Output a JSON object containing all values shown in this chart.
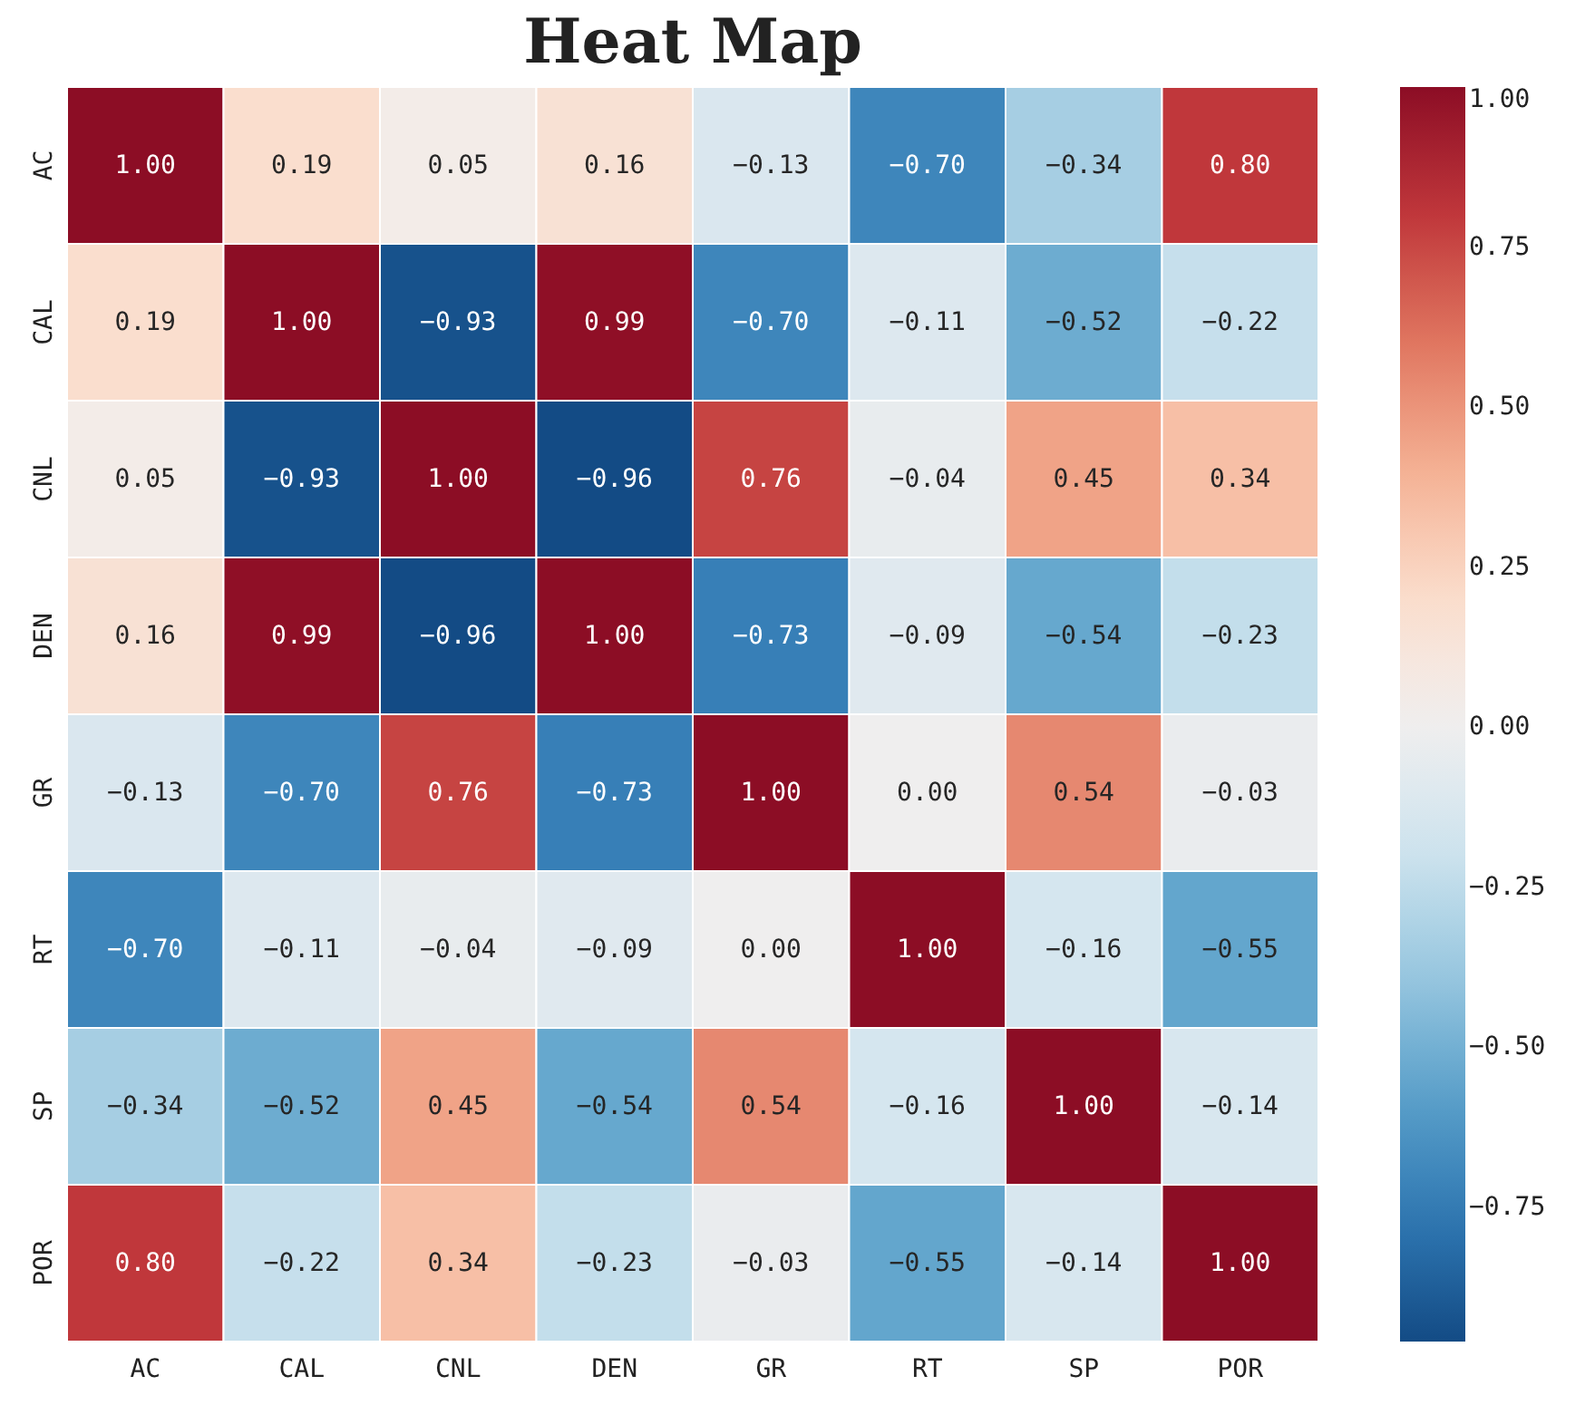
{
  "chart_data": {
    "type": "heatmap",
    "title": "Heat Map",
    "categories": [
      "AC",
      "CAL",
      "CNL",
      "DEN",
      "GR",
      "RT",
      "SP",
      "POR"
    ],
    "y_categories": [
      "AC",
      "CAL",
      "CNL",
      "DEN",
      "GR",
      "RT",
      "SP",
      "POR"
    ],
    "cells": [
      [
        1.0,
        0.19,
        0.05,
        0.16,
        -0.13,
        -0.7,
        -0.34,
        0.8
      ],
      [
        0.19,
        1.0,
        -0.93,
        0.99,
        -0.7,
        -0.11,
        -0.52,
        -0.22
      ],
      [
        0.05,
        -0.93,
        1.0,
        -0.96,
        0.76,
        -0.04,
        0.45,
        0.34
      ],
      [
        0.16,
        0.99,
        -0.96,
        1.0,
        -0.73,
        -0.09,
        -0.54,
        -0.23
      ],
      [
        -0.13,
        -0.7,
        0.76,
        -0.73,
        1.0,
        0.0,
        0.54,
        -0.03
      ],
      [
        -0.7,
        -0.11,
        -0.04,
        -0.09,
        0.0,
        1.0,
        -0.16,
        -0.55
      ],
      [
        -0.34,
        -0.52,
        0.45,
        -0.54,
        0.54,
        -0.16,
        1.0,
        -0.14
      ],
      [
        0.8,
        -0.22,
        0.34,
        -0.23,
        -0.03,
        -0.55,
        -0.14,
        1.0
      ]
    ],
    "cell_labels": [
      [
        "1.00",
        "0.19",
        "0.05",
        "0.16",
        "−0.13",
        "−0.70",
        "−0.34",
        "0.80"
      ],
      [
        "0.19",
        "1.00",
        "−0.93",
        "0.99",
        "−0.70",
        "−0.11",
        "−0.52",
        "−0.22"
      ],
      [
        "0.05",
        "−0.93",
        "1.00",
        "−0.96",
        "0.76",
        "−0.04",
        "0.45",
        "0.34"
      ],
      [
        "0.16",
        "0.99",
        "−0.96",
        "1.00",
        "−0.73",
        "−0.09",
        "−0.54",
        "−0.23"
      ],
      [
        "−0.13",
        "−0.70",
        "0.76",
        "−0.73",
        "1.00",
        "0.00",
        "0.54",
        "−0.03"
      ],
      [
        "−0.70",
        "−0.11",
        "−0.04",
        "−0.09",
        "0.00",
        "1.00",
        "−0.16",
        "−0.55"
      ],
      [
        "−0.34",
        "−0.52",
        "0.45",
        "−0.54",
        "0.54",
        "−0.16",
        "1.00",
        "−0.14"
      ],
      [
        "0.80",
        "−0.22",
        "0.34",
        "−0.23",
        "−0.03",
        "−0.55",
        "−0.14",
        "1.00"
      ]
    ],
    "clim": [
      -0.96,
      1.0
    ],
    "cticks": [
      {
        "value": -0.75,
        "label": "−0.75"
      },
      {
        "value": -0.5,
        "label": "−0.50"
      },
      {
        "value": -0.25,
        "label": "−0.25"
      },
      {
        "value": 0.0,
        "label": "0.00"
      },
      {
        "value": 0.25,
        "label": "0.25"
      },
      {
        "value": 0.5,
        "label": "0.50"
      },
      {
        "value": 0.75,
        "label": "0.75"
      },
      {
        "value": 1.0,
        "label": "1.00"
      }
    ]
  }
}
